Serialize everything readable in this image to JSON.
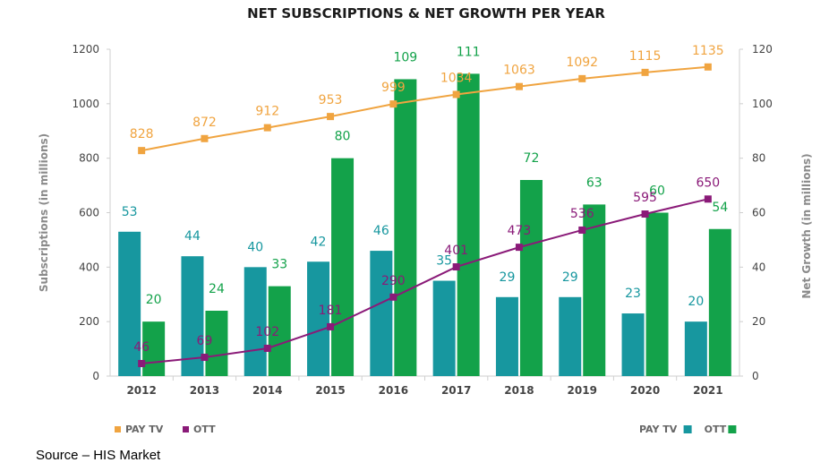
{
  "chart_data": {
    "type": "bar+line",
    "title": "NET SUBSCRIPTIONS & NET GROWTH PER YEAR",
    "categories": [
      "2012",
      "2013",
      "2014",
      "2015",
      "2016",
      "2017",
      "2018",
      "2019",
      "2020",
      "2021"
    ],
    "y_left": {
      "label": "Subscriptions (in millions)",
      "range": [
        0,
        1200
      ],
      "ticks": [
        0,
        200,
        400,
        600,
        800,
        1000,
        1200
      ]
    },
    "y_right": {
      "label": "Net Growth (in millions)",
      "range": [
        0,
        120
      ],
      "ticks": [
        0,
        20,
        40,
        60,
        80,
        100,
        120
      ]
    },
    "line_series": [
      {
        "name": "PAY TV",
        "axis": "left",
        "color": "#f0a440",
        "values": [
          828,
          872,
          912,
          953,
          999,
          1034,
          1063,
          1092,
          1115,
          1135
        ]
      },
      {
        "name": "OTT",
        "axis": "left",
        "color": "#8a1a78",
        "values": [
          46,
          69,
          102,
          181,
          290,
          401,
          473,
          536,
          595,
          650
        ]
      }
    ],
    "bar_series": [
      {
        "name": "PAY TV",
        "axis": "right",
        "color": "#17979f",
        "values": [
          53,
          44,
          40,
          42,
          46,
          35,
          29,
          29,
          23,
          20
        ]
      },
      {
        "name": "OTT",
        "axis": "right",
        "color": "#13a24a",
        "values": [
          20,
          24,
          33,
          80,
          109,
          111,
          72,
          63,
          60,
          54
        ]
      }
    ],
    "grid": false,
    "legend": {
      "lines_placement": "bottom-left",
      "bars_placement": "bottom-right"
    }
  },
  "source": "Source – HIS Market"
}
